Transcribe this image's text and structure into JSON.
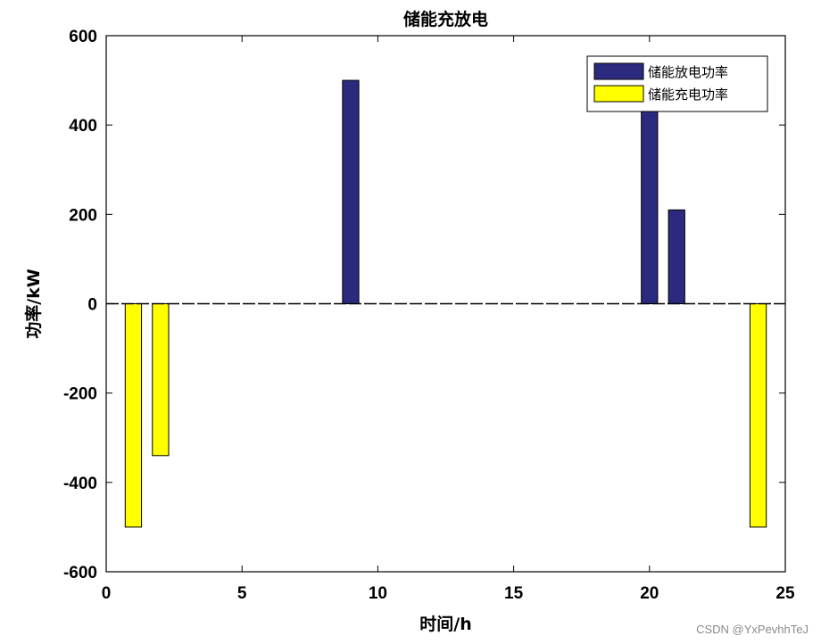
{
  "chart_data": {
    "type": "bar",
    "title": "储能充放电",
    "xlabel": "时间/h",
    "ylabel": "功率/kW",
    "xlim": [
      0,
      25
    ],
    "ylim": [
      -600,
      600
    ],
    "xticks": [
      0,
      5,
      10,
      15,
      20,
      25
    ],
    "yticks": [
      -600,
      -400,
      -200,
      0,
      200,
      400,
      600
    ],
    "grid": false,
    "legend_position": "top-right",
    "series": [
      {
        "name": "储能放电功率",
        "color": "#2b2a7f",
        "points": [
          {
            "x": 9,
            "y": 500
          },
          {
            "x": 20,
            "y": 450
          },
          {
            "x": 21,
            "y": 210
          }
        ]
      },
      {
        "name": "储能充电功率",
        "color": "#ffff00",
        "points": [
          {
            "x": 1,
            "y": -500
          },
          {
            "x": 2,
            "y": -340
          },
          {
            "x": 24,
            "y": -500
          }
        ]
      }
    ]
  },
  "watermark": "CSDN @YxPevhhTeJ"
}
